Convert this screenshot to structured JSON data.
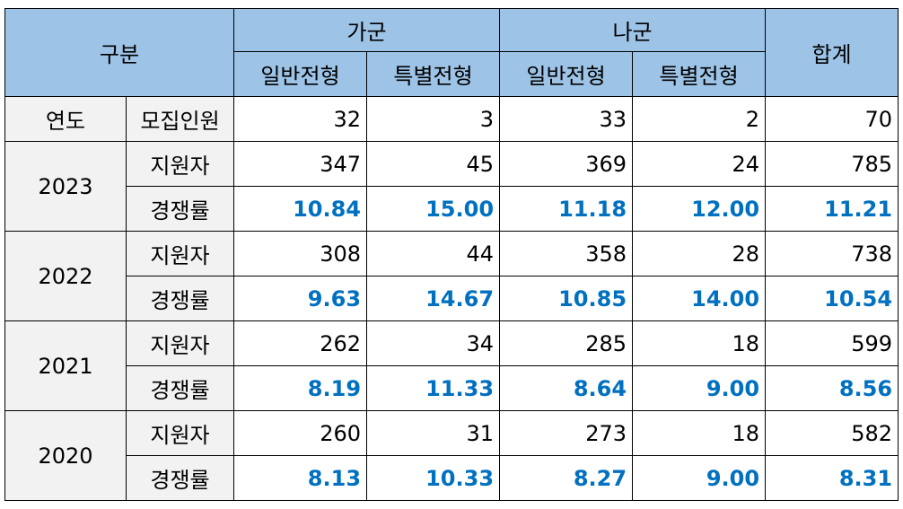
{
  "header": {
    "category": "구분",
    "group_ga": "가군",
    "group_na": "나군",
    "total": "합계",
    "general_ga": "일반전형",
    "special_ga": "특별전형",
    "general_na": "일반전형",
    "special_na": "특별전형"
  },
  "quota_row": {
    "year_label": "연도",
    "label": "모집인원",
    "values": [
      "32",
      "3",
      "33",
      "2",
      "70"
    ]
  },
  "years": [
    {
      "year": "2023",
      "applicants_label": "지원자",
      "applicants": [
        "347",
        "45",
        "369",
        "24",
        "785"
      ],
      "rate_label": "경쟁률",
      "rates": [
        "10.84",
        "15.00",
        "11.18",
        "12.00",
        "11.21"
      ]
    },
    {
      "year": "2022",
      "applicants_label": "지원자",
      "applicants": [
        "308",
        "44",
        "358",
        "28",
        "738"
      ],
      "rate_label": "경쟁률",
      "rates": [
        "9.63",
        "14.67",
        "10.85",
        "14.00",
        "10.54"
      ]
    },
    {
      "year": "2021",
      "applicants_label": "지원자",
      "applicants": [
        "262",
        "34",
        "285",
        "18",
        "599"
      ],
      "rate_label": "경쟁률",
      "rates": [
        "8.19",
        "11.33",
        "8.64",
        "9.00",
        "8.56"
      ]
    },
    {
      "year": "2020",
      "applicants_label": "지원자",
      "applicants": [
        "260",
        "31",
        "273",
        "18",
        "582"
      ],
      "rate_label": "경쟁률",
      "rates": [
        "8.13",
        "10.33",
        "8.27",
        "9.00",
        "8.31"
      ]
    }
  ],
  "colors": {
    "header_bg": "#9dc3e6",
    "label_bg": "#f2f2f2",
    "rate_text": "#0070c0"
  }
}
